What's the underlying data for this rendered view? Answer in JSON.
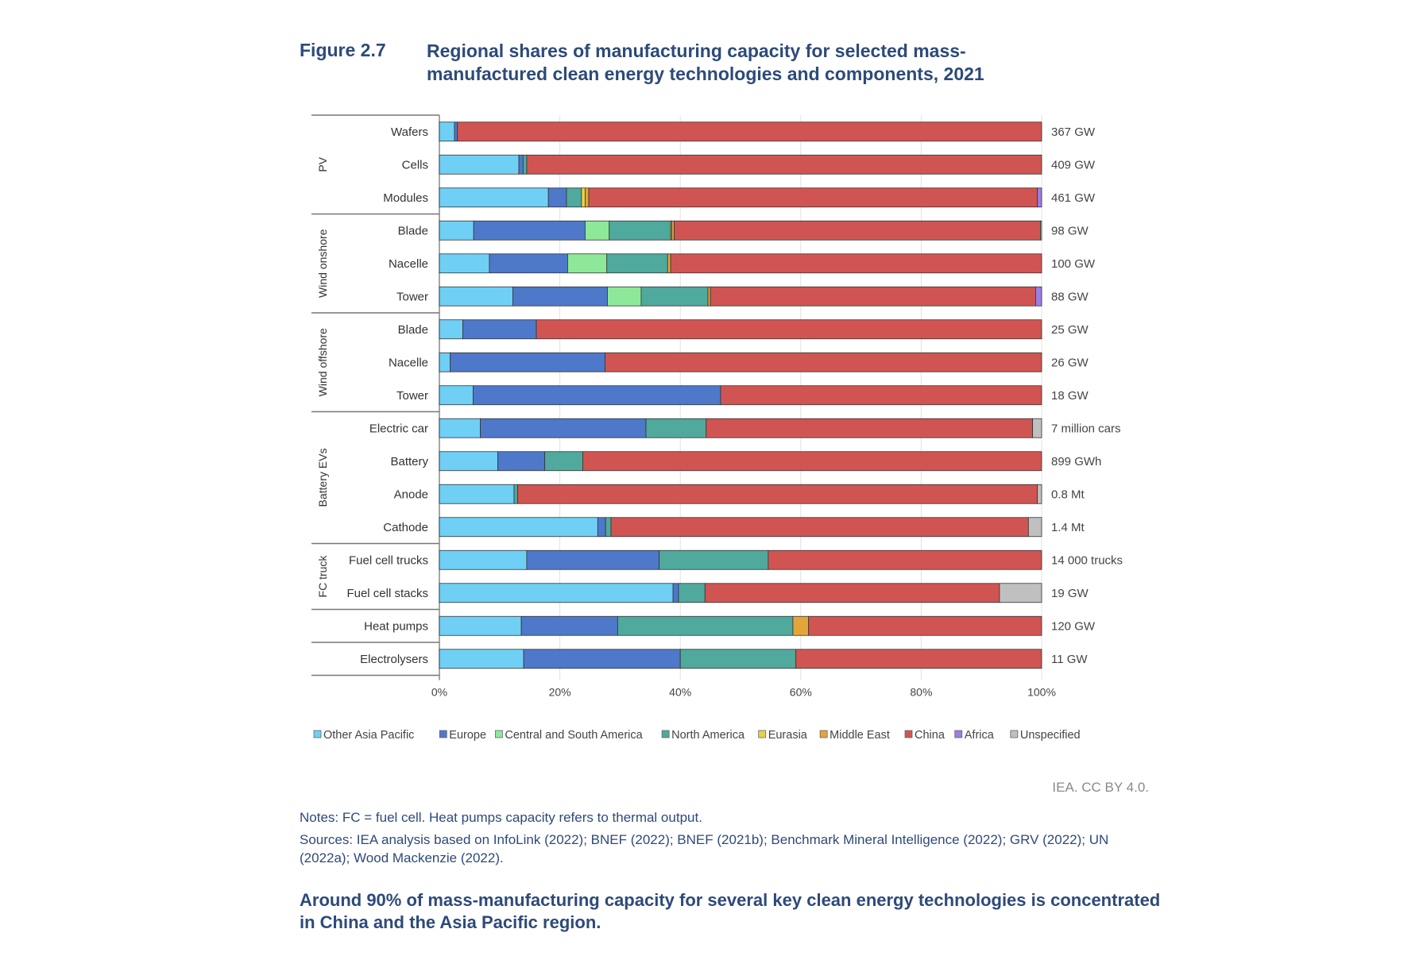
{
  "figure": {
    "number": "Figure 2.7",
    "title": "Regional shares of manufacturing capacity for selected mass-manufactured clean energy technologies and components, 2021"
  },
  "credit": "IEA. CC BY 4.0.",
  "notes": "Notes: FC = fuel cell. Heat pumps capacity refers to thermal output.",
  "sources": "Sources: IEA analysis based on InfoLink (2022); BNEF (2022); BNEF (2021b); Benchmark Mineral Intelligence (2022); GRV (2022); UN (2022a); Wood Mackenzie (2022).",
  "conclusion": "Around 90% of mass-manufacturing capacity for several key clean energy technologies is concentrated in China and the Asia Pacific region.",
  "chart_data": {
    "type": "bar",
    "orientation": "horizontal",
    "stacked": true,
    "title": "Regional shares of manufacturing capacity for selected mass-manufactured clean energy technologies and components, 2021",
    "xlabel": "",
    "ylabel": "",
    "xlim": [
      0,
      100
    ],
    "x_ticks": [
      "0%",
      "20%",
      "40%",
      "60%",
      "80%",
      "100%"
    ],
    "grid": true,
    "legend_position": "bottom",
    "regions": [
      {
        "name": "Other Asia Pacific",
        "color": "#6fcff5"
      },
      {
        "name": "Europe",
        "color": "#4e78c9"
      },
      {
        "name": "Central and South America",
        "color": "#8ee89a"
      },
      {
        "name": "North America",
        "color": "#4fa99c"
      },
      {
        "name": "Eurasia",
        "color": "#e8d14a"
      },
      {
        "name": "Middle East",
        "color": "#e3a53a"
      },
      {
        "name": "China",
        "color": "#d05552"
      },
      {
        "name": "Africa",
        "color": "#9b7fe0"
      },
      {
        "name": "Unspecified",
        "color": "#c0c0c0"
      }
    ],
    "groups": [
      {
        "label": "PV",
        "rows": [
          {
            "label": "Wafers",
            "total": "367 GW",
            "values": [
              2.5,
              0.5,
              0,
              0,
              0,
              0,
              97.0,
              0,
              0
            ]
          },
          {
            "label": "Cells",
            "total": "409 GW",
            "values": [
              13.2,
              0.7,
              0,
              0.6,
              0,
              0,
              85.5,
              0,
              0
            ]
          },
          {
            "label": "Modules",
            "total": "461 GW",
            "values": [
              18.1,
              3.0,
              0,
              2.5,
              0.6,
              0.6,
              74.5,
              0.7,
              0
            ]
          }
        ]
      },
      {
        "label": "Wind onshore",
        "rows": [
          {
            "label": "Blade",
            "total": "98 GW",
            "values": [
              5.7,
              18.5,
              4.0,
              10.2,
              0.2,
              0.4,
              60.8,
              0,
              0.2
            ]
          },
          {
            "label": "Nacelle",
            "total": "100 GW",
            "values": [
              8.3,
              13.0,
              6.5,
              10.1,
              0,
              0.5,
              61.6,
              0,
              0
            ]
          },
          {
            "label": "Tower",
            "total": "88 GW",
            "values": [
              12.2,
              15.7,
              5.6,
              11.1,
              0,
              0.4,
              54.0,
              1.0,
              0
            ]
          }
        ]
      },
      {
        "label": "Wind offshore",
        "rows": [
          {
            "label": "Blade",
            "total": "25 GW",
            "values": [
              3.9,
              12.2,
              0,
              0,
              0,
              0,
              83.9,
              0,
              0
            ]
          },
          {
            "label": "Nacelle",
            "total": "26 GW",
            "values": [
              1.8,
              25.7,
              0,
              0,
              0,
              0,
              72.5,
              0,
              0
            ]
          },
          {
            "label": "Tower",
            "total": "18 GW",
            "values": [
              5.6,
              41.1,
              0,
              0,
              0,
              0,
              53.3,
              0,
              0
            ]
          }
        ]
      },
      {
        "label": "Battery EVs",
        "rows": [
          {
            "label": "Electric car",
            "total": "7 million cars",
            "values": [
              6.8,
              27.5,
              0,
              10.0,
              0,
              0,
              54.2,
              0,
              1.5
            ]
          },
          {
            "label": "Battery",
            "total": "899 GWh",
            "values": [
              9.7,
              7.8,
              0,
              6.3,
              0,
              0,
              76.2,
              0,
              0
            ]
          },
          {
            "label": "Anode",
            "total": "0.8 Mt",
            "values": [
              12.4,
              0,
              0,
              0.6,
              0,
              0,
              86.3,
              0,
              0.7
            ]
          },
          {
            "label": "Cathode",
            "total": "1.4 Mt",
            "values": [
              26.3,
              1.3,
              0,
              0.9,
              0,
              0,
              69.3,
              0,
              2.2
            ]
          }
        ]
      },
      {
        "label": "FC truck",
        "rows": [
          {
            "label": "Fuel cell trucks",
            "total": "14 000 trucks",
            "values": [
              14.5,
              22.0,
              0,
              18.1,
              0,
              0,
              45.4,
              0,
              0
            ]
          },
          {
            "label": "Fuel cell stacks",
            "total": "19 GW",
            "values": [
              38.8,
              0.9,
              0,
              4.4,
              0,
              0,
              48.9,
              0,
              7.0
            ]
          }
        ]
      },
      {
        "label": "",
        "rows": [
          {
            "label": "Heat pumps",
            "total": "120 GW",
            "values": [
              13.6,
              16.0,
              0,
              29.1,
              0,
              2.6,
              38.7,
              0,
              0
            ]
          }
        ]
      },
      {
        "label": "",
        "rows": [
          {
            "label": "Electrolysers",
            "total": "11 GW",
            "values": [
              14.0,
              26.0,
              0,
              19.2,
              0,
              0,
              40.8,
              0,
              0
            ]
          }
        ]
      }
    ]
  }
}
